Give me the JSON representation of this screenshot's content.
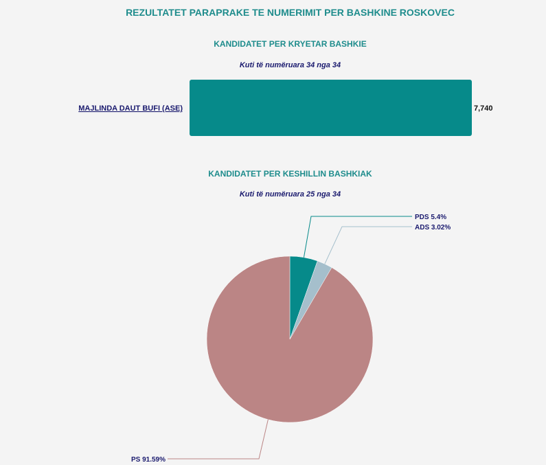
{
  "page": {
    "title": "REZULTATET PARAPRAKE TE NUMERIMIT PER BASHKINE ROSKOVEC"
  },
  "mayor": {
    "title": "KANDIDATET PER KRYETAR BASHKIE",
    "subtitle": "Kuti të numëruara 34 nga 34"
  },
  "council": {
    "title": "KANDIDATET PER KESHILLIN BASHKIAK",
    "subtitle": "Kuti të numëruara 25 nga 34"
  },
  "chart_data": [
    {
      "type": "bar",
      "orientation": "horizontal",
      "categories": [
        "MAJLINDA DAUT BUFI (ASE)"
      ],
      "values": [
        7740
      ],
      "value_labels": [
        "7,740"
      ],
      "title": "KANDIDATET PER KRYETAR BASHKIE",
      "subtitle": "Kuti të numëruara 34 nga 34",
      "xlabel": "",
      "ylabel": "",
      "xlim": [
        0,
        7740
      ],
      "grid": false,
      "colors": [
        "#068a8a"
      ],
      "category_color": "#1a1a6e"
    },
    {
      "type": "pie",
      "categories": [
        "PDS",
        "ADS",
        "PS"
      ],
      "values": [
        5.4,
        3.02,
        91.59
      ],
      "labels": [
        "PDS 5.4%",
        "ADS 3.02%",
        "PS 91.59%"
      ],
      "title": "KANDIDATET PER KESHILLIN BASHKIAK",
      "subtitle": "Kuti të numëruara 25 nga 34",
      "colors": [
        "#068a8a",
        "#a5bfcc",
        "#bb8585"
      ],
      "legend": "none",
      "label_color": "#1a1a6e"
    }
  ]
}
